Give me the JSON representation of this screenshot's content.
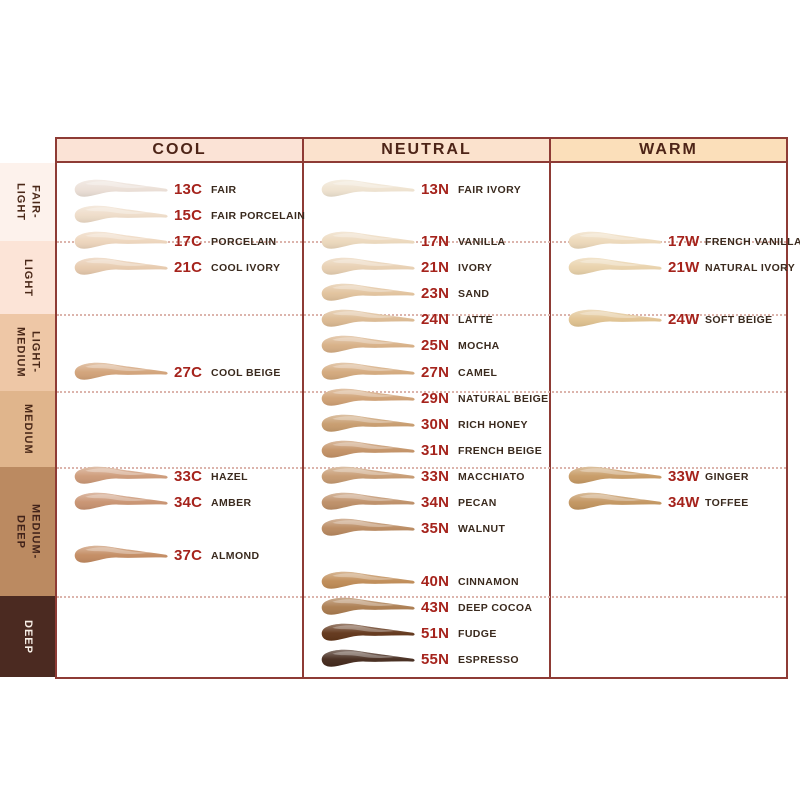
{
  "chart_data": {
    "type": "table",
    "border_color": "#8e3b35",
    "dotted_line_color": "#dcb4ac",
    "code_color": "#a5231c",
    "name_color": "#3a2a1e",
    "header_text_color": "#4d2417",
    "columns": [
      {
        "id": "cool",
        "label": "COOL",
        "bg": "#fbe3d6"
      },
      {
        "id": "neutral",
        "label": "NEUTRAL",
        "bg": "#fbe2cd"
      },
      {
        "id": "warm",
        "label": "WARM",
        "bg": "#fbdfba"
      }
    ],
    "depth_groups": [
      {
        "label": "FAIR-\nLIGHT",
        "bg": "#fdf2ec",
        "text_color": "#4a2818"
      },
      {
        "label": "LIGHT",
        "bg": "#fce4d7",
        "text_color": "#4a2818"
      },
      {
        "label": "LIGHT-\nMEDIUM",
        "bg": "#eec7a6",
        "text_color": "#4a2818"
      },
      {
        "label": "MEDIUM",
        "bg": "#e0b58c",
        "text_color": "#4a2818"
      },
      {
        "label": "MEDIUM-\nDEEP",
        "bg": "#bb8a61",
        "text_color": "#42231a"
      },
      {
        "label": "DEEP",
        "bg": "#4b2a21",
        "text_color": "#f8f0e8"
      }
    ],
    "shades": [
      {
        "column": "cool",
        "row": 0,
        "code": "13C",
        "name": "FAIR",
        "color": "#ebdfd6"
      },
      {
        "column": "cool",
        "row": 1,
        "code": "15C",
        "name": "FAIR PORCELAIN",
        "color": "#eedcc8"
      },
      {
        "column": "cool",
        "row": 2,
        "code": "17C",
        "name": "PORCELAIN",
        "color": "#edd5bc"
      },
      {
        "column": "cool",
        "row": 3,
        "code": "21C",
        "name": "COOL IVORY",
        "color": "#e7caad"
      },
      {
        "column": "cool",
        "row": 7,
        "code": "27C",
        "name": "COOL BEIGE",
        "color": "#d2a278"
      },
      {
        "column": "cool",
        "row": 11,
        "code": "33C",
        "name": "HAZEL",
        "color": "#cd9a78"
      },
      {
        "column": "cool",
        "row": 12,
        "code": "34C",
        "name": "AMBER",
        "color": "#c89270"
      },
      {
        "column": "cool",
        "row": 14,
        "code": "37C",
        "name": "ALMOND",
        "color": "#c38b61"
      },
      {
        "column": "neutral",
        "row": 0,
        "code": "13N",
        "name": "FAIR IVORY",
        "color": "#efe3d0"
      },
      {
        "column": "neutral",
        "row": 2,
        "code": "17N",
        "name": "VANILLA",
        "color": "#ecd8bc"
      },
      {
        "column": "neutral",
        "row": 3,
        "code": "21N",
        "name": "IVORY",
        "color": "#e8d0b2"
      },
      {
        "column": "neutral",
        "row": 4,
        "code": "23N",
        "name": "SAND",
        "color": "#e1c29c"
      },
      {
        "column": "neutral",
        "row": 5,
        "code": "24N",
        "name": "LATTE",
        "color": "#dcba92"
      },
      {
        "column": "neutral",
        "row": 6,
        "code": "25N",
        "name": "MOCHA",
        "color": "#d7af85"
      },
      {
        "column": "neutral",
        "row": 7,
        "code": "27N",
        "name": "CAMEL",
        "color": "#d3a87b"
      },
      {
        "column": "neutral",
        "row": 8,
        "code": "29N",
        "name": "NATURAL BEIGE",
        "color": "#d0a175"
      },
      {
        "column": "neutral",
        "row": 9,
        "code": "30N",
        "name": "RICH HONEY",
        "color": "#c79b6c"
      },
      {
        "column": "neutral",
        "row": 10,
        "code": "31N",
        "name": "FRENCH BEIGE",
        "color": "#c39165"
      },
      {
        "column": "neutral",
        "row": 11,
        "code": "33N",
        "name": "MACCHIATO",
        "color": "#c69a71"
      },
      {
        "column": "neutral",
        "row": 12,
        "code": "34N",
        "name": "PECAN",
        "color": "#bd8e66"
      },
      {
        "column": "neutral",
        "row": 13,
        "code": "35N",
        "name": "WALNUT",
        "color": "#b9895f"
      },
      {
        "column": "neutral",
        "row": 15,
        "code": "40N",
        "name": "CINNAMON",
        "color": "#bf8b55"
      },
      {
        "column": "neutral",
        "row": 16,
        "code": "43N",
        "name": "DEEP COCOA",
        "color": "#aa7b4e"
      },
      {
        "column": "neutral",
        "row": 17,
        "code": "51N",
        "name": "FUDGE",
        "color": "#603418"
      },
      {
        "column": "neutral",
        "row": 18,
        "code": "55N",
        "name": "ESPRESSO",
        "color": "#44291c"
      },
      {
        "column": "warm",
        "row": 2,
        "code": "17W",
        "name": "FRENCH VANILLA",
        "color": "#edd9ba"
      },
      {
        "column": "warm",
        "row": 3,
        "code": "21W",
        "name": "NATURAL IVORY",
        "color": "#e9d2ab"
      },
      {
        "column": "warm",
        "row": 5,
        "code": "24W",
        "name": "SOFT BEIGE",
        "color": "#e1c391"
      },
      {
        "column": "warm",
        "row": 11,
        "code": "33W",
        "name": "GINGER",
        "color": "#c79a64"
      },
      {
        "column": "warm",
        "row": 12,
        "code": "34W",
        "name": "TOFFEE",
        "color": "#c2945e"
      }
    ]
  }
}
